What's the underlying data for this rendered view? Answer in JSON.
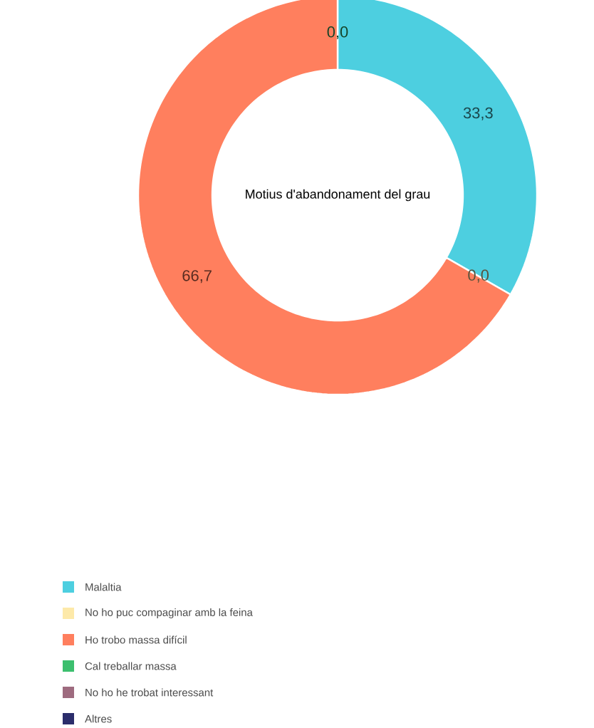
{
  "chart_data": {
    "type": "donut",
    "title": "Motius d'abandonament del grau",
    "categories": [
      "Malaltia",
      "No ho puc compaginar amb la feina",
      "Ho trobo massa difícil",
      "Cal treballar massa",
      "No ho he trobat interessant",
      "Altres"
    ],
    "values": [
      33.3,
      0.0,
      66.7,
      0.0,
      0.0,
      0.0
    ],
    "value_labels": [
      "33,3",
      "0,0",
      "66,7",
      "0,0",
      null,
      null
    ],
    "colors": [
      "#4dcfe0",
      "#fde9a9",
      "#ff7f5e",
      "#3cbf6e",
      "#9e6b7f",
      "#2b2d6b"
    ],
    "legend": "bottom left"
  }
}
